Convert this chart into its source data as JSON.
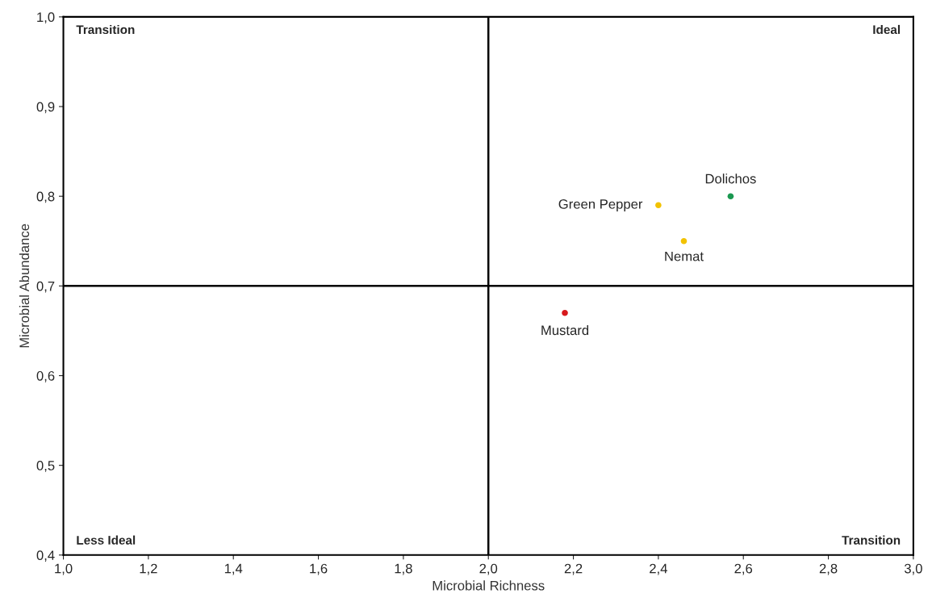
{
  "chart_data": {
    "type": "scatter",
    "xlabel": "Microbial Richness",
    "ylabel": "Microbial Abundance",
    "xlim": [
      1.0,
      3.0
    ],
    "ylim": [
      0.4,
      1.0
    ],
    "xticks": [
      {
        "value": 1.0,
        "label": "1,0"
      },
      {
        "value": 1.2,
        "label": "1,2"
      },
      {
        "value": 1.4,
        "label": "1,4"
      },
      {
        "value": 1.6,
        "label": "1,6"
      },
      {
        "value": 1.8,
        "label": "1,8"
      },
      {
        "value": 2.0,
        "label": "2,0"
      },
      {
        "value": 2.2,
        "label": "2,2"
      },
      {
        "value": 2.4,
        "label": "2,4"
      },
      {
        "value": 2.6,
        "label": "2,6"
      },
      {
        "value": 2.8,
        "label": "2,8"
      },
      {
        "value": 3.0,
        "label": "3,0"
      }
    ],
    "yticks": [
      {
        "value": 0.4,
        "label": "0,4"
      },
      {
        "value": 0.5,
        "label": "0,5"
      },
      {
        "value": 0.6,
        "label": "0,6"
      },
      {
        "value": 0.7,
        "label": "0,7"
      },
      {
        "value": 0.8,
        "label": "0,8"
      },
      {
        "value": 0.9,
        "label": "0,9"
      },
      {
        "value": 1.0,
        "label": "1,0"
      }
    ],
    "series": [
      {
        "name": "Dolichos",
        "color": "#1a9850",
        "x": [
          2.57
        ],
        "values": [
          0.8
        ]
      },
      {
        "name": "Green Pepper",
        "color": "#f2c200",
        "x": [
          2.4
        ],
        "values": [
          0.79
        ]
      },
      {
        "name": "Nemat",
        "color": "#f2c200",
        "x": [
          2.46
        ],
        "values": [
          0.75
        ]
      },
      {
        "name": "Mustard",
        "color": "#d7191c",
        "x": [
          2.18
        ],
        "values": [
          0.67
        ]
      }
    ],
    "ref_lines": [
      {
        "axis": "x",
        "value": 2.0,
        "color": "#000000"
      },
      {
        "axis": "y",
        "value": 0.7,
        "color": "#000000"
      }
    ],
    "annotations": [
      "Transition",
      "Ideal",
      "Less Ideal",
      "Transition"
    ],
    "marker": "circle",
    "grid": false,
    "legend": false
  }
}
